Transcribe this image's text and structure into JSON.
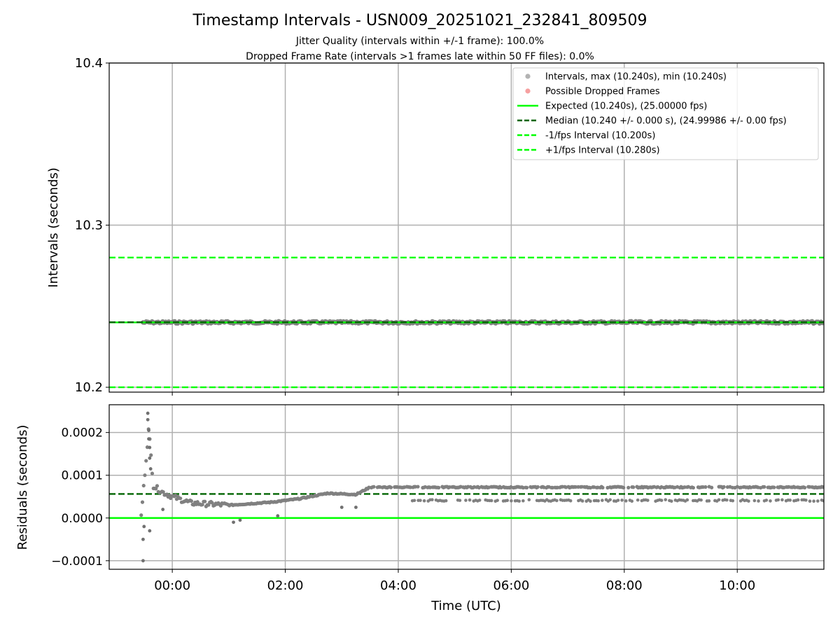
{
  "figure": {
    "title": "Timestamp Intervals - USN009_20251021_232841_809509",
    "subtitle_1": "Jitter Quality (intervals within +/-1 frame): 100.0%",
    "subtitle_2": "Dropped Frame Rate (intervals >1 frames late within 50 FF files): 0.0%"
  },
  "chart_data": [
    {
      "type": "scatter",
      "panel": "intervals",
      "ylabel": "Intervals (seconds)",
      "xlabel": "",
      "xlim": [
        "-01:07",
        "11:32"
      ],
      "ylim": [
        10.197,
        10.4
      ],
      "yticks": [
        "10.2",
        "10.3",
        "10.4"
      ],
      "grid": true,
      "legend_position": "top-right",
      "series": [
        {
          "name": "Intervals, max (10.240s), min (10.240s)",
          "kind": "points",
          "color": "#808080",
          "x_range": [
            "-00:31",
            "11:32"
          ],
          "y": 10.24
        },
        {
          "name": "Possible Dropped Frames",
          "kind": "points",
          "color": "#f06060",
          "count": 0
        },
        {
          "name": "Expected (10.240s), (25.00000 fps)",
          "kind": "hline",
          "y": 10.24,
          "color": "#00ff00",
          "style": "solid"
        },
        {
          "name": "Median (10.240 +/- 0.000 s), (24.99986 +/- 0.00 fps)",
          "kind": "hline",
          "y": 10.2401,
          "color": "#006400",
          "style": "dashed"
        },
        {
          "name": "-1/fps Interval (10.200s)",
          "kind": "hline",
          "y": 10.2,
          "color": "#00ff00",
          "style": "dashed"
        },
        {
          "name": "+1/fps Interval (10.280s)",
          "kind": "hline",
          "y": 10.28,
          "color": "#00ff00",
          "style": "dashed"
        }
      ]
    },
    {
      "type": "scatter",
      "panel": "residuals",
      "ylabel": "Residuals (seconds)",
      "xlabel": "Time (UTC)",
      "xlim": [
        "-01:07",
        "11:32"
      ],
      "xticks": [
        "00:00",
        "02:00",
        "04:00",
        "06:00",
        "08:00",
        "10:00"
      ],
      "ylim": [
        -0.00012,
        0.000265
      ],
      "yticks": [
        "−0.0001",
        "0.0000",
        "0.0001",
        "0.0002"
      ],
      "grid": true,
      "reference_lines": [
        {
          "y": 0.0,
          "color": "#00ff00",
          "style": "solid"
        },
        {
          "y": 5.63e-05,
          "color": "#006400",
          "style": "dashed"
        }
      ],
      "residual_trend": [
        {
          "x": "-00:33",
          "y": 5e-06
        },
        {
          "x": "-00:25",
          "y": 0.00021
        },
        {
          "x": "-00:20",
          "y": 7.5e-05
        },
        {
          "x": "-00:10",
          "y": 6e-05
        },
        {
          "x": "00:00",
          "y": 5e-05
        },
        {
          "x": "00:20",
          "y": 3.5e-05
        },
        {
          "x": "01:00",
          "y": 3e-05
        },
        {
          "x": "01:45",
          "y": 3.7e-05
        },
        {
          "x": "02:15",
          "y": 4.5e-05
        },
        {
          "x": "02:45",
          "y": 5.8e-05
        },
        {
          "x": "03:15",
          "y": 5.5e-05
        },
        {
          "x": "03:30",
          "y": 7.2e-05
        },
        {
          "x": "11:32",
          "y": 7.2e-05
        }
      ],
      "residual_lower_band": {
        "x_range": [
          "04:15",
          "11:32"
        ],
        "y": 4.1e-05
      },
      "outliers": [
        {
          "x": "-00:31",
          "y": -0.0001
        },
        {
          "x": "-00:31",
          "y": -5e-05
        },
        {
          "x": "-00:30",
          "y": -2e-05
        },
        {
          "x": "-00:26",
          "y": 0.000245
        },
        {
          "x": "-00:26",
          "y": 0.00023
        },
        {
          "x": "-00:25",
          "y": 0.000205
        },
        {
          "x": "-00:25",
          "y": 0.000185
        },
        {
          "x": "-00:24",
          "y": 0.000165
        },
        {
          "x": "-00:24",
          "y": 0.00014
        },
        {
          "x": "-00:23",
          "y": 0.000115
        },
        {
          "x": "-00:24",
          "y": -3e-05
        },
        {
          "x": "-00:10",
          "y": 2e-05
        },
        {
          "x": "01:05",
          "y": -1e-05
        },
        {
          "x": "01:12",
          "y": -5e-06
        },
        {
          "x": "01:52",
          "y": 5e-06
        },
        {
          "x": "03:00",
          "y": 2.5e-05
        },
        {
          "x": "03:15",
          "y": 2.5e-05
        }
      ]
    }
  ]
}
